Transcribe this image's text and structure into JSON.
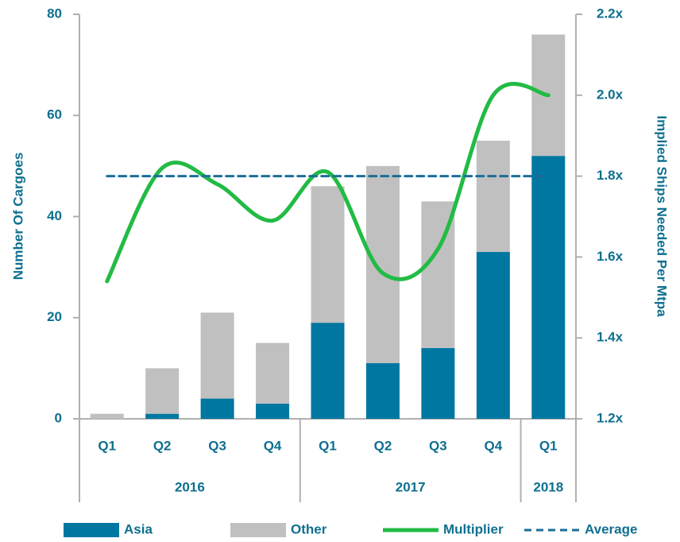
{
  "chart_data": {
    "type": "bar",
    "y_label": "Number Of Cargoes",
    "y2_label": "Implied Ships Needed Per Mtpa",
    "categories": [
      "Q1",
      "Q2",
      "Q3",
      "Q4",
      "Q1",
      "Q2",
      "Q3",
      "Q4",
      "Q1"
    ],
    "x_groups": [
      {
        "label": "2016",
        "size": 4
      },
      {
        "label": "2017",
        "size": 4
      },
      {
        "label": "2018",
        "size": 1
      }
    ],
    "series": [
      {
        "name": "Asia",
        "type": "bar",
        "color": "#0077a0",
        "values": [
          0,
          1,
          4,
          3,
          19,
          11,
          14,
          33,
          52
        ]
      },
      {
        "name": "Other",
        "type": "bar",
        "color": "#c0c0c0",
        "values": [
          1,
          9,
          17,
          12,
          27,
          39,
          29,
          22,
          24
        ]
      },
      {
        "name": "Multiplier",
        "type": "line",
        "axis": "y2",
        "color": "#22bb44",
        "values": [
          1.54,
          1.82,
          1.78,
          1.69,
          1.81,
          1.56,
          1.62,
          2.0,
          2.0
        ]
      },
      {
        "name": "Average",
        "type": "line",
        "axis": "y2",
        "dashed": true,
        "color": "#1a6e99",
        "values": [
          1.8,
          1.8,
          1.8,
          1.8,
          1.8,
          1.8,
          1.8,
          1.8,
          1.8
        ]
      }
    ],
    "stacked": true,
    "ylim": [
      0,
      80
    ],
    "yticks": [
      0,
      20,
      40,
      60,
      80
    ],
    "y2lim": [
      1.2,
      2.2
    ],
    "y2ticks": [
      {
        "value": 1.2,
        "label": "1.2x"
      },
      {
        "value": 1.4,
        "label": "1.4x"
      },
      {
        "value": 1.6,
        "label": "1.6x"
      },
      {
        "value": 1.8,
        "label": "1.8x"
      },
      {
        "value": 2.0,
        "label": "2.0x"
      },
      {
        "value": 2.2,
        "label": "2.2x"
      }
    ],
    "legend": "bottom"
  }
}
